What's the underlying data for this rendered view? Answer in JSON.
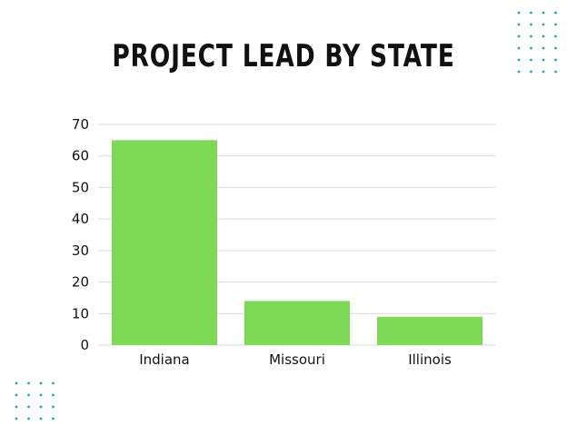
{
  "chart_data": {
    "type": "bar",
    "title": "PROJECT LEAD BY STATE",
    "categories": [
      "Indiana",
      "Missouri",
      "Illinois"
    ],
    "values": [
      65,
      14,
      9
    ],
    "ylim": [
      0,
      70
    ],
    "yticks": [
      0,
      10,
      20,
      30,
      40,
      50,
      60,
      70
    ],
    "xlabel": "",
    "ylabel": "",
    "grid": true,
    "bar_color": "#7ED957",
    "grid_color": "#D9D9D9",
    "decoration_color": "#26A6B5"
  }
}
